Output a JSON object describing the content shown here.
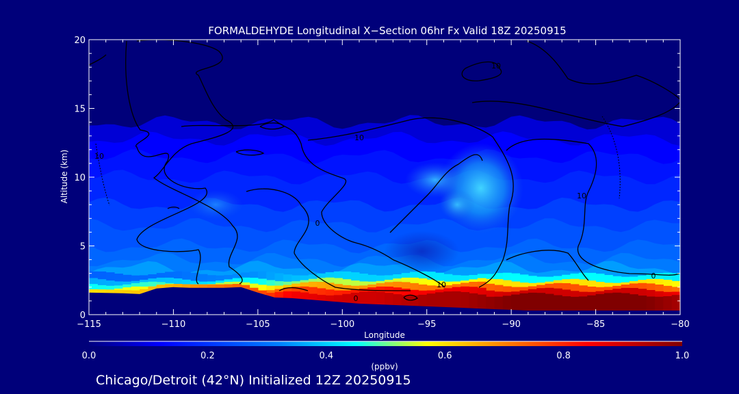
{
  "chart_data": {
    "type": "heatmap",
    "title": "FORMALDEHYDE Longitudinal X−Section 06hr  Fx Valid 18Z 20250915",
    "xlabel": "Longitude",
    "ylabel": "Altitude (km)",
    "xlim": [
      -115,
      -80
    ],
    "ylim": [
      0,
      20
    ],
    "x_ticks": [
      -115,
      -110,
      -105,
      -100,
      -95,
      -90,
      -85,
      -80
    ],
    "x_tick_labels": [
      "−115",
      "−110",
      "−105",
      "−100",
      "−95",
      "−90",
      "−85",
      "−80"
    ],
    "y_ticks": [
      0,
      5,
      10,
      15,
      20
    ],
    "y_tick_labels": [
      "0",
      "5",
      "10",
      "15",
      "20"
    ],
    "colorbar": {
      "label": "(ppbv)",
      "min": 0.0,
      "max": 1.0,
      "ticks": [
        "0.0",
        "0.2",
        "0.4",
        "0.6",
        "0.8",
        "1.0"
      ],
      "tick_values": [
        0,
        0.2,
        0.4,
        0.6,
        0.8,
        1.0
      ],
      "colormap": "rainbow (dark blue to dark red)"
    },
    "contour_labels": [
      "10",
      "0",
      "10",
      "10",
      "0",
      "0",
      "10",
      "10"
    ],
    "terrain": {
      "lon": [
        -115,
        -113,
        -112,
        -111,
        -110,
        -109,
        -108,
        -107,
        -106,
        -105,
        -104,
        -103,
        -102,
        -101,
        -100,
        -99,
        -98,
        -97,
        -96,
        -95,
        -94,
        -93,
        -92,
        -91,
        -90,
        -89,
        -88,
        -87,
        -86,
        -85,
        -84,
        -83,
        -82,
        -81,
        -80
      ],
      "alt_km": [
        1.6,
        1.55,
        1.5,
        1.9,
        2.0,
        1.95,
        1.95,
        1.95,
        2.0,
        1.6,
        1.25,
        1.2,
        1.1,
        1.0,
        0.9,
        0.8,
        0.75,
        0.7,
        0.65,
        0.6,
        0.55,
        0.5,
        0.45,
        0.4,
        0.35,
        0.3,
        0.3,
        0.3,
        0.3,
        0.3,
        0.3,
        0.3,
        0.3,
        0.3,
        0.3
      ]
    },
    "near_surface_ppbv": {
      "lon": [
        -115,
        -110,
        -108,
        -105,
        -103,
        -100,
        -98,
        -95,
        -93,
        -90,
        -88,
        -85,
        -82,
        -80
      ],
      "value": [
        0.6,
        0.65,
        0.7,
        0.75,
        0.85,
        0.9,
        0.9,
        0.95,
        0.95,
        1.0,
        1.0,
        1.0,
        1.0,
        0.95
      ]
    },
    "upper_max_ppbv": {
      "lon": [
        -95,
        -94,
        -93,
        -92,
        -91,
        -90
      ],
      "alt_km": [
        10,
        9,
        8,
        9,
        10,
        9
      ],
      "value": [
        0.35,
        0.4,
        0.45,
        0.42,
        0.45,
        0.38
      ]
    }
  },
  "footer": {
    "caption": "Chicago/Detroit (42°N) Initialized 12Z 20250915"
  },
  "colors": {
    "background": "#00007a",
    "axes": "#ffffff",
    "contours": "#000000"
  }
}
